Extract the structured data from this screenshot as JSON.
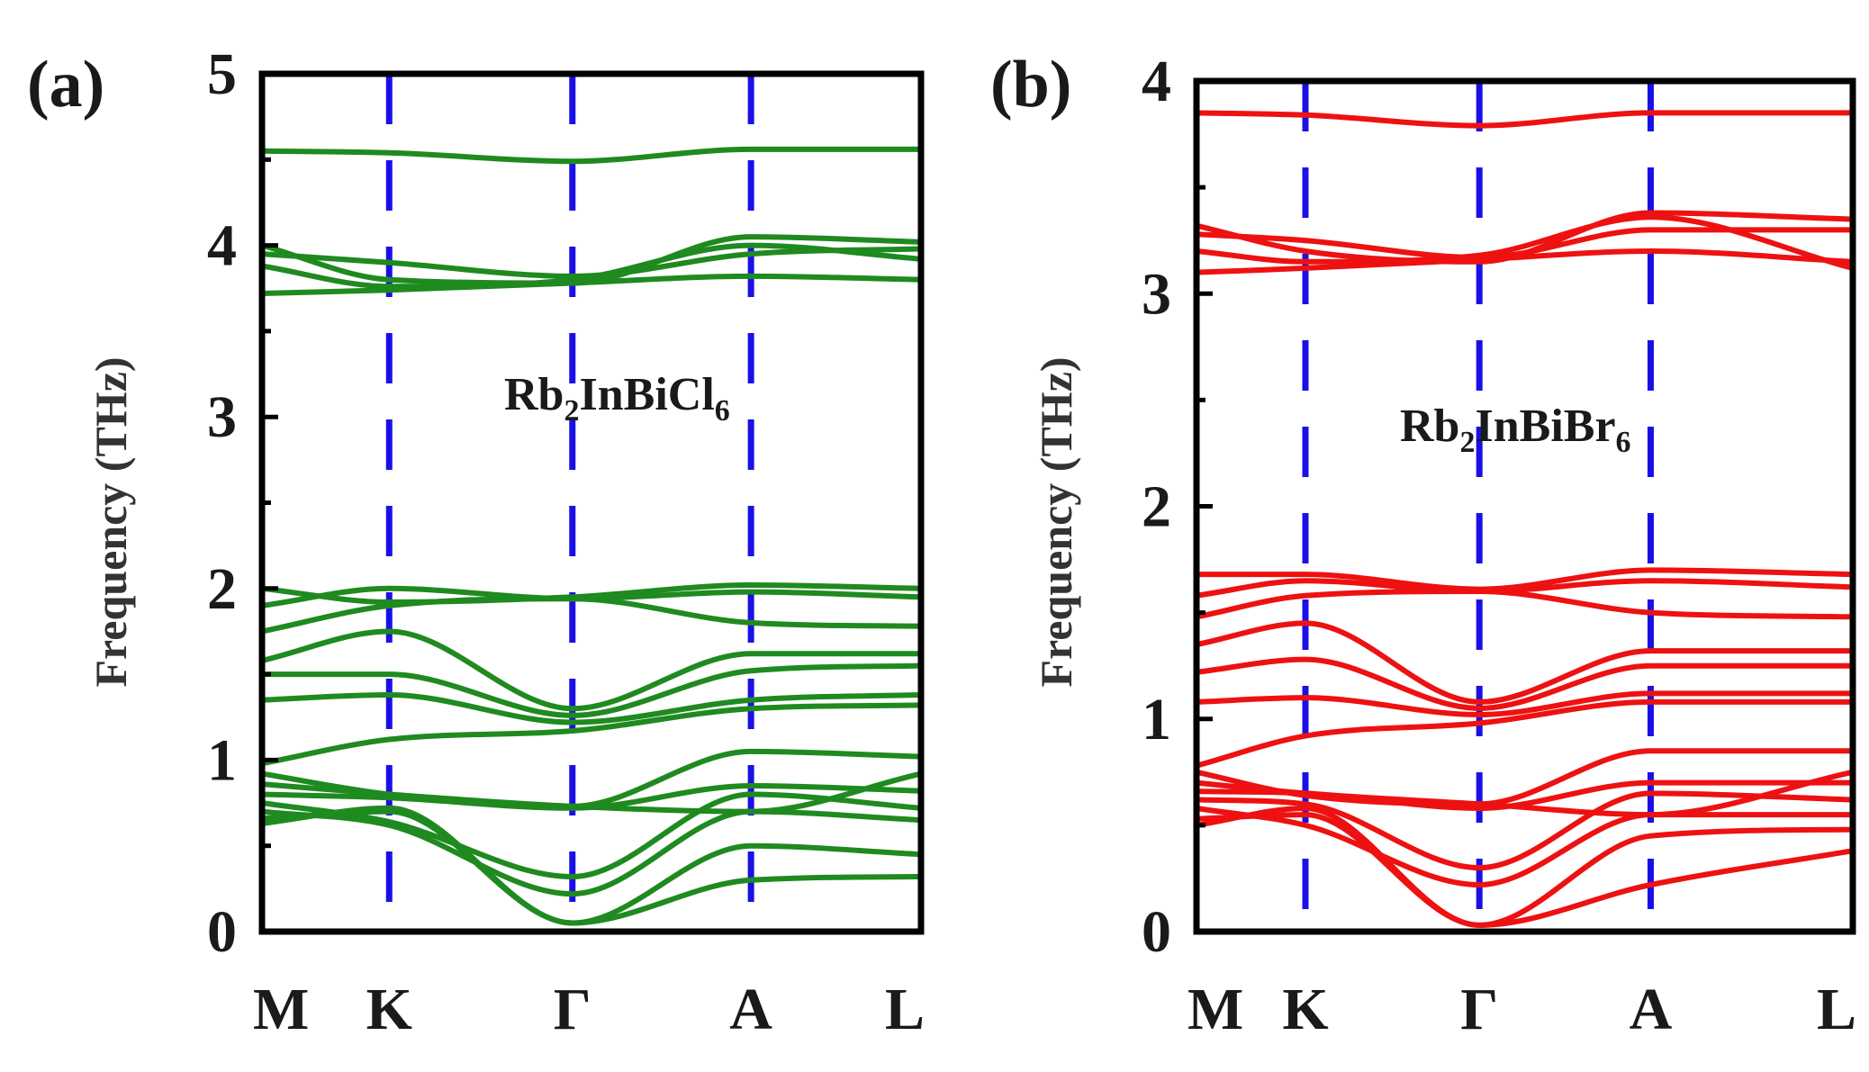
{
  "chart_data": [
    {
      "type": "line",
      "panel_label": "(a)",
      "title": "",
      "xlabel": "",
      "ylabel": "Frequency (THz)",
      "compound": {
        "base": "Rb",
        "sub1": "2",
        "mid": "InBiCl",
        "sub2": "6"
      },
      "ylim": [
        0,
        5
      ],
      "yticks": [
        "0",
        "1",
        "2",
        "3",
        "4",
        "5"
      ],
      "ytick_values": [
        0,
        1,
        2,
        3,
        4,
        5
      ],
      "minor_ytick_values": [
        0.5,
        1.5,
        2.5,
        3.5,
        4.5
      ],
      "x_points": [
        "M",
        "K",
        "Γ",
        "A",
        "L"
      ],
      "x_positions": [
        0,
        0.193,
        0.471,
        0.742,
        1
      ],
      "line_color": "#1f8a1f",
      "symmetry_line_color": "#1a10e6",
      "x": [
        0,
        0.193,
        0.471,
        0.742,
        1
      ],
      "series": [
        {
          "name": "band-1",
          "values": [
            0.63,
            0.72,
            0.05,
            0.3,
            0.32
          ]
        },
        {
          "name": "band-2",
          "values": [
            0.66,
            0.7,
            0.05,
            0.5,
            0.45
          ]
        },
        {
          "name": "band-3",
          "values": [
            0.7,
            0.62,
            0.22,
            0.7,
            0.65
          ]
        },
        {
          "name": "band-4",
          "values": [
            0.75,
            0.64,
            0.32,
            0.8,
            0.72
          ]
        },
        {
          "name": "band-5",
          "values": [
            0.8,
            0.78,
            0.72,
            0.85,
            0.82
          ]
        },
        {
          "name": "band-6",
          "values": [
            0.86,
            0.8,
            0.73,
            0.7,
            0.92
          ]
        },
        {
          "name": "band-7",
          "values": [
            0.92,
            0.8,
            0.73,
            1.05,
            1.02
          ]
        },
        {
          "name": "band-8",
          "values": [
            0.98,
            1.12,
            1.17,
            1.3,
            1.32
          ]
        },
        {
          "name": "band-9",
          "values": [
            1.35,
            1.38,
            1.22,
            1.35,
            1.38
          ]
        },
        {
          "name": "band-10",
          "values": [
            1.5,
            1.5,
            1.26,
            1.52,
            1.55
          ]
        },
        {
          "name": "band-11",
          "values": [
            1.58,
            1.75,
            1.3,
            1.62,
            1.62
          ]
        },
        {
          "name": "band-12",
          "values": [
            1.75,
            1.9,
            1.94,
            1.8,
            1.78
          ]
        },
        {
          "name": "band-13",
          "values": [
            1.9,
            2.0,
            1.94,
            1.98,
            1.95
          ]
        },
        {
          "name": "band-14",
          "values": [
            2.0,
            1.92,
            1.95,
            2.02,
            2.0
          ]
        },
        {
          "name": "band-15",
          "values": [
            3.72,
            3.74,
            3.78,
            3.82,
            3.8
          ]
        },
        {
          "name": "band-16",
          "values": [
            3.88,
            3.76,
            3.8,
            4.0,
            3.92
          ]
        },
        {
          "name": "band-17",
          "values": [
            3.95,
            3.9,
            3.82,
            3.95,
            3.98
          ]
        },
        {
          "name": "band-18",
          "values": [
            4.0,
            3.8,
            3.78,
            4.05,
            4.02
          ]
        },
        {
          "name": "band-19",
          "values": [
            4.55,
            4.54,
            4.49,
            4.56,
            4.56
          ]
        }
      ]
    },
    {
      "type": "line",
      "panel_label": "(b)",
      "title": "",
      "xlabel": "",
      "ylabel": "Frequency (THz)",
      "compound": {
        "base": "Rb",
        "sub1": "2",
        "mid": "InBiBr",
        "sub2": "6"
      },
      "ylim": [
        0,
        4
      ],
      "yticks": [
        "0",
        "1",
        "2",
        "3",
        "4"
      ],
      "ytick_values": [
        0,
        1,
        2,
        3,
        4
      ],
      "minor_ytick_values": [
        0.5,
        1.5,
        2.5,
        3.5
      ],
      "x_points": [
        "M",
        "K",
        "Γ",
        "A",
        "L"
      ],
      "x_positions": [
        0,
        0.166,
        0.431,
        0.692,
        1
      ],
      "line_color": "#ee1111",
      "symmetry_line_color": "#1a10e6",
      "x": [
        0,
        0.166,
        0.431,
        0.692,
        1
      ],
      "series": [
        {
          "name": "band-1",
          "values": [
            0.5,
            0.58,
            0.03,
            0.22,
            0.38
          ]
        },
        {
          "name": "band-2",
          "values": [
            0.53,
            0.55,
            0.03,
            0.45,
            0.48
          ]
        },
        {
          "name": "band-3",
          "values": [
            0.58,
            0.5,
            0.22,
            0.55,
            0.55
          ]
        },
        {
          "name": "band-4",
          "values": [
            0.62,
            0.6,
            0.3,
            0.65,
            0.62
          ]
        },
        {
          "name": "band-5",
          "values": [
            0.66,
            0.65,
            0.58,
            0.7,
            0.7
          ]
        },
        {
          "name": "band-6",
          "values": [
            0.7,
            0.65,
            0.6,
            0.55,
            0.75
          ]
        },
        {
          "name": "band-7",
          "values": [
            0.75,
            0.64,
            0.6,
            0.85,
            0.85
          ]
        },
        {
          "name": "band-8",
          "values": [
            0.78,
            0.92,
            0.98,
            1.08,
            1.08
          ]
        },
        {
          "name": "band-9",
          "values": [
            1.08,
            1.1,
            1.02,
            1.12,
            1.12
          ]
        },
        {
          "name": "band-10",
          "values": [
            1.22,
            1.28,
            1.05,
            1.25,
            1.25
          ]
        },
        {
          "name": "band-11",
          "values": [
            1.35,
            1.45,
            1.08,
            1.32,
            1.32
          ]
        },
        {
          "name": "band-12",
          "values": [
            1.48,
            1.58,
            1.6,
            1.5,
            1.48
          ]
        },
        {
          "name": "band-13",
          "values": [
            1.58,
            1.65,
            1.6,
            1.65,
            1.62
          ]
        },
        {
          "name": "band-14",
          "values": [
            1.68,
            1.68,
            1.61,
            1.7,
            1.68
          ]
        },
        {
          "name": "band-15",
          "values": [
            3.1,
            3.12,
            3.16,
            3.2,
            3.15
          ]
        },
        {
          "name": "band-16",
          "values": [
            3.2,
            3.15,
            3.18,
            3.36,
            3.12
          ]
        },
        {
          "name": "band-17",
          "values": [
            3.28,
            3.25,
            3.17,
            3.3,
            3.3
          ]
        },
        {
          "name": "band-18",
          "values": [
            3.32,
            3.2,
            3.15,
            3.38,
            3.35
          ]
        },
        {
          "name": "band-19",
          "values": [
            3.85,
            3.84,
            3.79,
            3.85,
            3.85
          ]
        }
      ]
    }
  ]
}
